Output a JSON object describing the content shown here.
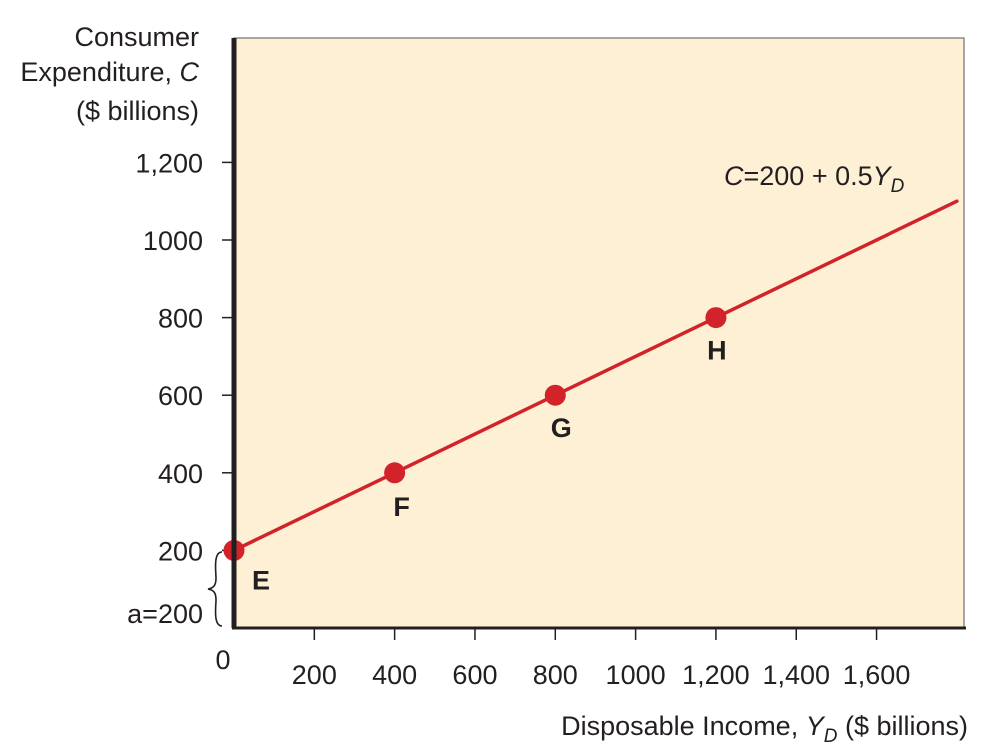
{
  "chart_data": {
    "type": "line",
    "title": "",
    "ylabel": {
      "lines": [
        "Consumer",
        "Expenditure, C",
        "($ billions)"
      ],
      "line1": "Consumer",
      "line2_text": "Expenditure, ",
      "line2_var": "C",
      "line3": "($ billions)"
    },
    "xlabel": {
      "prefix": "Disposable Income, ",
      "var": "Y",
      "sub": "D",
      "suffix": " ($ billions)"
    },
    "xlim": [
      0,
      1800
    ],
    "ylim": [
      0,
      1200
    ],
    "x_ticks": [
      {
        "value": 0,
        "label": "0"
      },
      {
        "value": 200,
        "label": "200"
      },
      {
        "value": 400,
        "label": "400"
      },
      {
        "value": 600,
        "label": "600"
      },
      {
        "value": 800,
        "label": "800"
      },
      {
        "value": 1000,
        "label": "1000"
      },
      {
        "value": 1200,
        "label": "1,200"
      },
      {
        "value": 1400,
        "label": "1,400"
      },
      {
        "value": 1600,
        "label": "1,600"
      }
    ],
    "y_ticks": [
      {
        "value": 200,
        "label": "200"
      },
      {
        "value": 400,
        "label": "400"
      },
      {
        "value": 600,
        "label": "600"
      },
      {
        "value": 800,
        "label": "800"
      },
      {
        "value": 1000,
        "label": "1000"
      },
      {
        "value": 1200,
        "label": "1,200"
      }
    ],
    "series": [
      {
        "label": "C=200 + 0.5Y_D",
        "equation": {
          "var": "C",
          "eq": "=200 + 0.5",
          "var2": "Y",
          "sub": "D"
        },
        "x": [
          0,
          1800
        ],
        "y": [
          200,
          1100
        ]
      }
    ],
    "points": [
      {
        "label": "E",
        "x": 0,
        "y": 200
      },
      {
        "label": "F",
        "x": 400,
        "y": 400
      },
      {
        "label": "G",
        "x": 800,
        "y": 600
      },
      {
        "label": "H",
        "x": 1200,
        "y": 800
      }
    ],
    "intercept_annotation": "a=200",
    "grid": false,
    "colors": {
      "plot_background": "#fdf0d5",
      "line": "#d2232a",
      "axis": "#231f20"
    }
  }
}
